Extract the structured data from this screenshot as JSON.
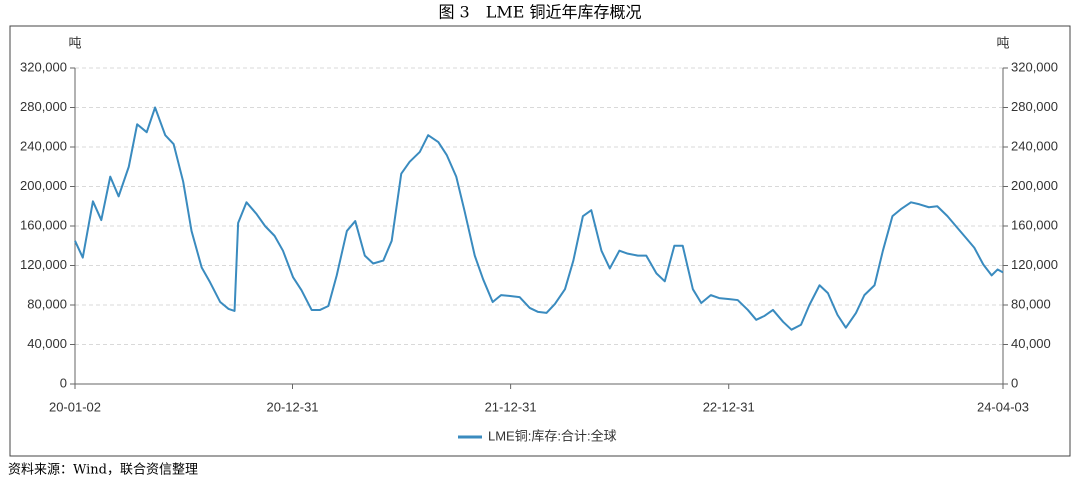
{
  "title": "图 3　LME 铜近年库存概况",
  "source": "资料来源：Wind，联合资信整理",
  "chart_data": {
    "type": "line",
    "ylabel": "吨",
    "y2label": "吨",
    "x": [
      "2020-01-02",
      "2020-01-15",
      "2020-02-01",
      "2020-02-15",
      "2020-03-01",
      "2020-03-15",
      "2020-04-01",
      "2020-04-15",
      "2020-05-01",
      "2020-05-15",
      "2020-06-01",
      "2020-06-15",
      "2020-07-01",
      "2020-07-15",
      "2020-08-01",
      "2020-08-15",
      "2020-09-01",
      "2020-09-15",
      "2020-09-25",
      "2020-10-01",
      "2020-10-15",
      "2020-11-01",
      "2020-11-15",
      "2020-12-01",
      "2020-12-15",
      "2021-01-01",
      "2021-01-15",
      "2021-02-01",
      "2021-02-15",
      "2021-03-01",
      "2021-03-15",
      "2021-04-01",
      "2021-04-15",
      "2021-05-01",
      "2021-05-15",
      "2021-06-01",
      "2021-06-15",
      "2021-07-01",
      "2021-07-15",
      "2021-08-01",
      "2021-08-15",
      "2021-09-01",
      "2021-09-15",
      "2021-10-01",
      "2021-10-15",
      "2021-11-01",
      "2021-11-15",
      "2021-12-01",
      "2021-12-15",
      "2022-01-01",
      "2022-01-15",
      "2022-02-01",
      "2022-02-15",
      "2022-03-01",
      "2022-03-15",
      "2022-04-01",
      "2022-04-15",
      "2022-05-01",
      "2022-05-15",
      "2022-06-01",
      "2022-06-15",
      "2022-07-01",
      "2022-07-15",
      "2022-08-01",
      "2022-08-15",
      "2022-09-01",
      "2022-09-15",
      "2022-10-01",
      "2022-10-15",
      "2022-11-01",
      "2022-11-15",
      "2022-12-01",
      "2022-12-15",
      "2023-01-01",
      "2023-01-15",
      "2023-02-01",
      "2023-02-15",
      "2023-03-01",
      "2023-03-15",
      "2023-04-01",
      "2023-04-15",
      "2023-05-01",
      "2023-05-15",
      "2023-06-01",
      "2023-06-15",
      "2023-07-01",
      "2023-07-15",
      "2023-08-01",
      "2023-08-15",
      "2023-09-01",
      "2023-09-15",
      "2023-10-01",
      "2023-10-15",
      "2023-11-01",
      "2023-11-15",
      "2023-12-01",
      "2023-12-15",
      "2024-01-01",
      "2024-01-15",
      "2024-02-01",
      "2024-02-15",
      "2024-03-01",
      "2024-03-15",
      "2024-03-25",
      "2024-04-03"
    ],
    "series": [
      {
        "name": "LME铜:库存:合计:全球",
        "color": "#3a8bbf",
        "values": [
          145000,
          128000,
          185000,
          166000,
          210000,
          190000,
          220000,
          263000,
          255000,
          280000,
          252000,
          243000,
          205000,
          155000,
          118000,
          103000,
          83000,
          76000,
          74000,
          163000,
          184000,
          172000,
          160000,
          150000,
          135000,
          108000,
          95000,
          75000,
          75000,
          79000,
          110000,
          155000,
          165000,
          130000,
          122000,
          125000,
          145000,
          213000,
          225000,
          235000,
          252000,
          245000,
          232000,
          210000,
          175000,
          130000,
          106000,
          83000,
          90000,
          89000,
          88000,
          77000,
          73000,
          72000,
          81000,
          96000,
          125000,
          170000,
          176000,
          135000,
          117000,
          135000,
          132000,
          130000,
          130000,
          112000,
          104000,
          140000,
          140000,
          96000,
          82000,
          90000,
          87000,
          86000,
          85000,
          75000,
          65000,
          69000,
          75000,
          63000,
          55000,
          60000,
          80000,
          100000,
          92000,
          70000,
          57000,
          72000,
          90000,
          100000,
          135000,
          170000,
          177000,
          184000,
          182000,
          179000,
          180000,
          170000,
          160000,
          148000,
          138000,
          121000,
          110000,
          116000,
          113000
        ]
      }
    ],
    "xlim": [
      "2020-01-02",
      "2024-04-03"
    ],
    "xticks": [
      {
        "value": "2020-01-02",
        "label": "20-01-02"
      },
      {
        "value": "2020-12-31",
        "label": "20-12-31"
      },
      {
        "value": "2021-12-31",
        "label": "21-12-31"
      },
      {
        "value": "2022-12-31",
        "label": "22-12-31"
      },
      {
        "value": "2024-04-03",
        "label": "24-04-03"
      }
    ],
    "ylim": [
      0,
      320000
    ],
    "yticks": [
      0,
      {
        "value": 40000,
        "label": "40,000"
      },
      {
        "value": 80000,
        "label": "80,000"
      },
      {
        "value": 120000,
        "label": "120,000"
      },
      {
        "value": 160000,
        "label": "160,000"
      },
      {
        "value": 200000,
        "label": "200,000"
      },
      {
        "value": 240000,
        "label": "240,000"
      },
      {
        "value": 280000,
        "label": "280,000"
      },
      {
        "value": 320000,
        "label": "320,000"
      }
    ],
    "y2lim": [
      0,
      320000
    ],
    "y2ticks": [
      0,
      {
        "value": 40000,
        "label": "40,000"
      },
      {
        "value": 80000,
        "label": "80,000"
      },
      {
        "value": 120000,
        "label": "120,000"
      },
      {
        "value": 160000,
        "label": "160,000"
      },
      {
        "value": 200000,
        "label": "200,000"
      },
      {
        "value": 240000,
        "label": "240,000"
      },
      {
        "value": 280000,
        "label": "280,000"
      },
      {
        "value": 320000,
        "label": "320,000"
      }
    ],
    "grid": true,
    "legend": "bottom"
  }
}
